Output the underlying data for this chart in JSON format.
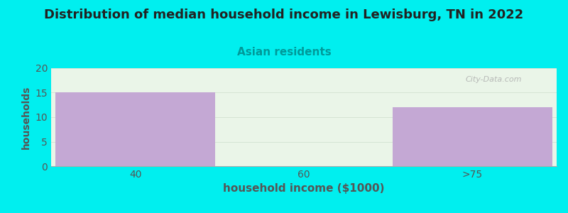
{
  "title": "Distribution of median household income in Lewisburg, TN in 2022",
  "subtitle": "Asian residents",
  "xlabel": "household income ($1000)",
  "ylabel": "households",
  "categories": [
    "40",
    "60",
    ">75"
  ],
  "values": [
    15,
    0,
    12
  ],
  "bar_color": "#C4A8D4",
  "bar_edgecolor": "#C4A8D4",
  "background_color": "#00EFEF",
  "plot_bg_color": "#EAF5E8",
  "ylim": [
    0,
    20
  ],
  "yticks": [
    0,
    5,
    10,
    15,
    20
  ],
  "title_fontsize": 13,
  "subtitle_fontsize": 11,
  "subtitle_color": "#009999",
  "xlabel_fontsize": 11,
  "ylabel_fontsize": 10,
  "tick_fontsize": 10,
  "watermark": "City-Data.com",
  "bar_width": 0.95,
  "title_color": "#222222"
}
